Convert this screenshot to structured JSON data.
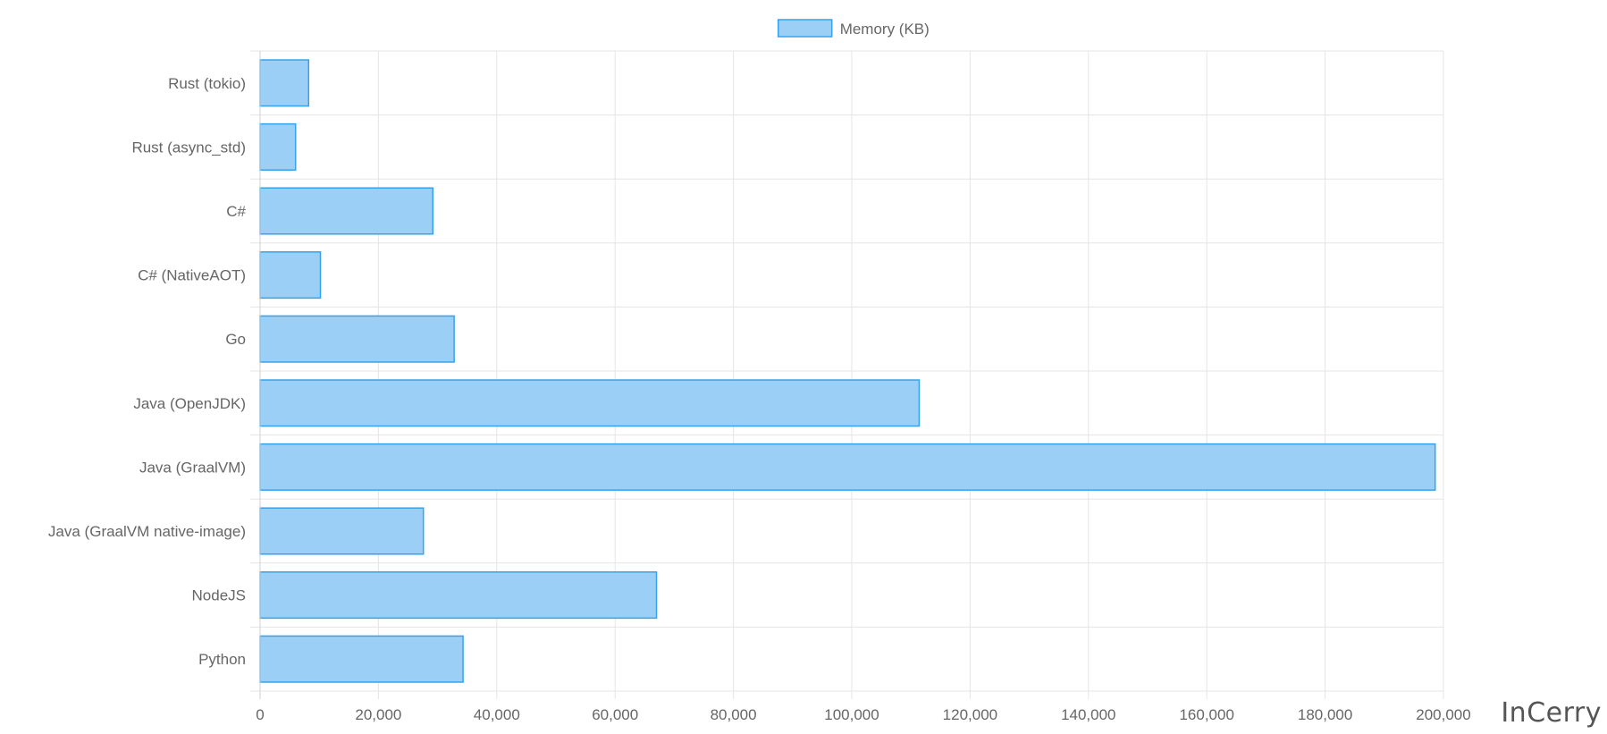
{
  "chart_data": {
    "type": "bar",
    "orientation": "horizontal",
    "categories": [
      "Rust (tokio)",
      "Rust (async_std)",
      "C#",
      "C# (NativeAOT)",
      "Go",
      "Java (OpenJDK)",
      "Java (GraalVM)",
      "Java (GraalVM native-image)",
      "NodeJS",
      "Python"
    ],
    "series": [
      {
        "name": "Memory (KB)",
        "values": [
          8200,
          6000,
          29200,
          10200,
          32800,
          111400,
          198600,
          27600,
          67000,
          34300
        ]
      }
    ],
    "xlim": [
      0,
      200000
    ],
    "xticks": [
      0,
      20000,
      40000,
      60000,
      80000,
      100000,
      120000,
      140000,
      160000,
      180000,
      200000
    ],
    "xtick_labels": [
      "0",
      "20,000",
      "40,000",
      "60,000",
      "80,000",
      "100,000",
      "120,000",
      "140,000",
      "160,000",
      "180,000",
      "200,000"
    ],
    "grid": true,
    "legend_position": "top-center",
    "colors": {
      "bar_fill": "#9ccff5",
      "bar_stroke": "#36a2eb",
      "grid": "#e5e5e5",
      "axis": "#cfcfcf"
    }
  },
  "watermark": "InCerry"
}
